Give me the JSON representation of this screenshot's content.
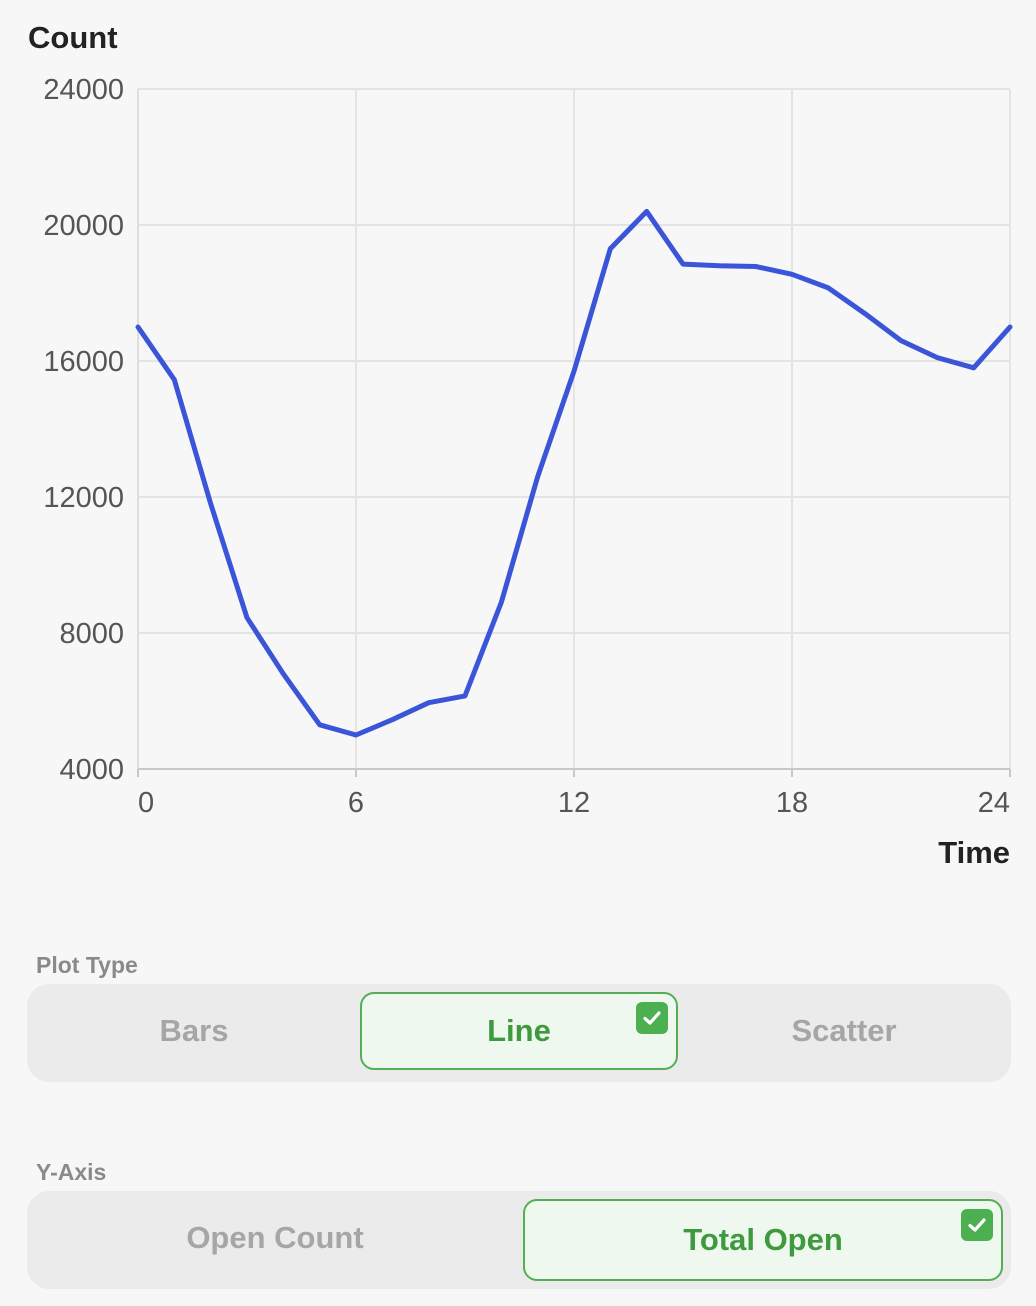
{
  "chart_data": {
    "type": "line",
    "ylabel": "Count",
    "xlabel": "Time",
    "xlim": [
      0,
      24
    ],
    "ylim": [
      4000,
      24000
    ],
    "x_ticks": [
      "0",
      "6",
      "12",
      "18",
      "24"
    ],
    "y_ticks": [
      "24000",
      "20000",
      "16000",
      "12000",
      "8000",
      "4000"
    ],
    "grid": true,
    "series": [
      {
        "color": "#3b55d9",
        "x": [
          0,
          1,
          2,
          3,
          4,
          5,
          6,
          7,
          8,
          9,
          10,
          11,
          12,
          13,
          14,
          15,
          16,
          17,
          18,
          19,
          20,
          21,
          22,
          23,
          24
        ],
        "y": [
          17000,
          15450,
          11800,
          8450,
          6800,
          5300,
          5000,
          5450,
          5950,
          6150,
          8900,
          12600,
          15700,
          19300,
          20400,
          18850,
          18800,
          18780,
          18550,
          18150,
          17400,
          16600,
          16100,
          15800,
          17000
        ]
      }
    ]
  },
  "controls": {
    "plot_type": {
      "label": "Plot Type",
      "options": [
        "Bars",
        "Line",
        "Scatter"
      ],
      "selected": "Line"
    },
    "y_axis": {
      "label": "Y-Axis",
      "options": [
        "Open Count",
        "Total Open"
      ],
      "selected": "Total Open"
    }
  },
  "colors": {
    "accent": "#4caf50",
    "line": "#3b55d9",
    "selected_bg": "#eef8ee"
  }
}
